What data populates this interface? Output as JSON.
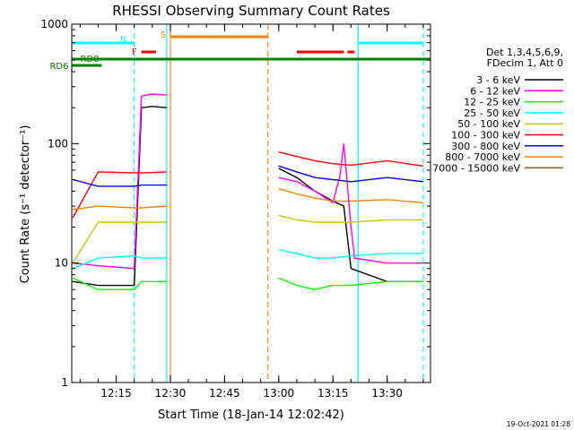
{
  "chart_data": {
    "type": "line",
    "title": "RHESSI Observing Summary Count Rates",
    "xlabel": "Start Time (18-Jan-14 12:02:42)",
    "ylabel": "Count Rate (s⁻¹ detector⁻¹)",
    "yscale": "log",
    "ylim": [
      1,
      1000
    ],
    "xlim": [
      "12:02:42",
      "13:42:00"
    ],
    "x_ticks": [
      "12:15",
      "12:30",
      "12:45",
      "13:00",
      "13:15",
      "13:30"
    ],
    "y_ticks": [
      "1",
      "10",
      "100",
      "1000"
    ],
    "grid": false,
    "legend": {
      "placement": "right",
      "header": [
        "Det 1,3,4,5,6,9,",
        "FDecim 1, Att 0"
      ],
      "entries": [
        {
          "label": "3 - 6 keV",
          "color": "#000000"
        },
        {
          "label": "6 - 12 keV",
          "color": "#ff00ff"
        },
        {
          "label": "12 - 25 keV",
          "color": "#00ff00"
        },
        {
          "label": "25 - 50 keV",
          "color": "#00ffff"
        },
        {
          "label": "50 - 100 keV",
          "color": "#c8c800"
        },
        {
          "label": "100 - 300 keV",
          "color": "#ff0000"
        },
        {
          "label": "300 - 800 keV",
          "color": "#0000ff"
        },
        {
          "label": "800 - 7000 keV",
          "color": "#ff8000"
        },
        {
          "label": "7000 - 15000 keV",
          "color": "#806000"
        }
      ]
    },
    "flags": [
      {
        "label": "N",
        "color": "#00ffff",
        "spans": [
          [
            "12:02:42",
            "12:20:00"
          ],
          [
            "13:22:00",
            "13:40:00"
          ]
        ]
      },
      {
        "label": "S",
        "color": "#ff8000",
        "spans": [
          [
            "12:30:00",
            "12:57:00"
          ]
        ]
      },
      {
        "label": "F",
        "color": "#ff0000",
        "spans": [
          [
            "12:22:00",
            "12:26:00"
          ],
          [
            "13:05:00",
            "13:18:00"
          ],
          [
            "13:19:00",
            "13:21:00"
          ]
        ]
      },
      {
        "label": "RD0",
        "color": "#008000",
        "spans": [
          [
            "12:02:42",
            "13:42:00"
          ]
        ]
      },
      {
        "label": "RD6",
        "color": "#008000",
        "spans": [
          [
            "12:02:42",
            "12:11:00"
          ]
        ]
      }
    ],
    "markers": [
      {
        "time": "12:20:00",
        "color": "#00ffff",
        "style": "dashed"
      },
      {
        "time": "12:29:00",
        "color": "#00ffff",
        "style": "solid"
      },
      {
        "time": "12:30:00",
        "color": "#ff8000",
        "style": "solid"
      },
      {
        "time": "12:57:00",
        "color": "#ff8000",
        "style": "dashed"
      },
      {
        "time": "13:22:00",
        "color": "#00ffff",
        "style": "solid"
      },
      {
        "time": "13:40:00",
        "color": "#00ffff",
        "style": "dashed"
      }
    ],
    "series": [
      {
        "name": "3 - 6 keV",
        "color": "#000000",
        "points": [
          [
            "12:03",
            7
          ],
          [
            "12:10",
            6.5
          ],
          [
            "12:20",
            6.5
          ],
          [
            "12:22",
            200
          ],
          [
            "12:25",
            205
          ],
          [
            "12:29",
            200
          ],
          [
            "13:00",
            62
          ],
          [
            "13:05",
            52
          ],
          [
            "13:10",
            40
          ],
          [
            "13:15",
            33
          ],
          [
            "13:18",
            30
          ],
          [
            "13:20",
            9
          ],
          [
            "13:30",
            7
          ],
          [
            "13:40",
            7
          ]
        ]
      },
      {
        "name": "6 - 12 keV",
        "color": "#ff00ff",
        "points": [
          [
            "12:03",
            10
          ],
          [
            "12:10",
            9.5
          ],
          [
            "12:20",
            9
          ],
          [
            "12:22",
            250
          ],
          [
            "12:25",
            260
          ],
          [
            "12:29",
            255
          ],
          [
            "13:00",
            52
          ],
          [
            "13:05",
            48
          ],
          [
            "13:10",
            40
          ],
          [
            "13:15",
            32
          ],
          [
            "13:17",
            55
          ],
          [
            "13:18",
            100
          ],
          [
            "13:20",
            20
          ],
          [
            "13:21",
            11
          ],
          [
            "13:30",
            10
          ],
          [
            "13:40",
            10
          ]
        ]
      },
      {
        "name": "12 - 25 keV",
        "color": "#00ff00",
        "points": [
          [
            "12:03",
            7.5
          ],
          [
            "12:10",
            6
          ],
          [
            "12:20",
            6
          ],
          [
            "12:22",
            7
          ],
          [
            "12:29",
            7
          ],
          [
            "13:00",
            7.5
          ],
          [
            "13:05",
            6.5
          ],
          [
            "13:10",
            6
          ],
          [
            "13:15",
            6.5
          ],
          [
            "13:20",
            6.5
          ],
          [
            "13:30",
            7
          ],
          [
            "13:40",
            7
          ]
        ]
      },
      {
        "name": "25 - 50 keV",
        "color": "#00ffff",
        "points": [
          [
            "12:03",
            9
          ],
          [
            "12:10",
            11
          ],
          [
            "12:20",
            11.5
          ],
          [
            "12:22",
            11
          ],
          [
            "12:29",
            11
          ],
          [
            "13:00",
            13
          ],
          [
            "13:05",
            12
          ],
          [
            "13:10",
            11
          ],
          [
            "13:15",
            11
          ],
          [
            "13:20",
            11.5
          ],
          [
            "13:30",
            12
          ],
          [
            "13:40",
            12
          ]
        ]
      },
      {
        "name": "50 - 100 keV",
        "color": "#c8c800",
        "points": [
          [
            "12:03",
            10
          ],
          [
            "12:10",
            22
          ],
          [
            "12:20",
            22
          ],
          [
            "12:22",
            22
          ],
          [
            "12:29",
            22
          ],
          [
            "13:00",
            25
          ],
          [
            "13:05",
            23
          ],
          [
            "13:10",
            22
          ],
          [
            "13:15",
            22
          ],
          [
            "13:20",
            22
          ],
          [
            "13:30",
            23
          ],
          [
            "13:40",
            23
          ]
        ]
      },
      {
        "name": "100 - 300 keV",
        "color": "#ff0000",
        "points": [
          [
            "12:03",
            24
          ],
          [
            "12:10",
            58
          ],
          [
            "12:20",
            57
          ],
          [
            "12:22",
            57
          ],
          [
            "12:29",
            58
          ],
          [
            "13:00",
            85
          ],
          [
            "13:05",
            78
          ],
          [
            "13:10",
            72
          ],
          [
            "13:15",
            68
          ],
          [
            "13:20",
            66
          ],
          [
            "13:30",
            72
          ],
          [
            "13:40",
            65
          ]
        ]
      },
      {
        "name": "300 - 800 keV",
        "color": "#0000ff",
        "points": [
          [
            "12:03",
            50
          ],
          [
            "12:10",
            44
          ],
          [
            "12:20",
            44
          ],
          [
            "12:22",
            45
          ],
          [
            "12:29",
            45
          ],
          [
            "13:00",
            65
          ],
          [
            "13:05",
            58
          ],
          [
            "13:10",
            52
          ],
          [
            "13:15",
            50
          ],
          [
            "13:20",
            48
          ],
          [
            "13:30",
            52
          ],
          [
            "13:40",
            48
          ]
        ]
      },
      {
        "name": "800 - 7000 keV",
        "color": "#ff8000",
        "points": [
          [
            "12:03",
            28
          ],
          [
            "12:10",
            30
          ],
          [
            "12:20",
            29
          ],
          [
            "12:22",
            29
          ],
          [
            "12:29",
            30
          ],
          [
            "13:00",
            42
          ],
          [
            "13:05",
            38
          ],
          [
            "13:10",
            35
          ],
          [
            "13:15",
            33
          ],
          [
            "13:20",
            33
          ],
          [
            "13:30",
            34
          ],
          [
            "13:40",
            32
          ]
        ]
      }
    ]
  },
  "footer": {
    "timestamp": "19-Oct-2021 01:28"
  }
}
